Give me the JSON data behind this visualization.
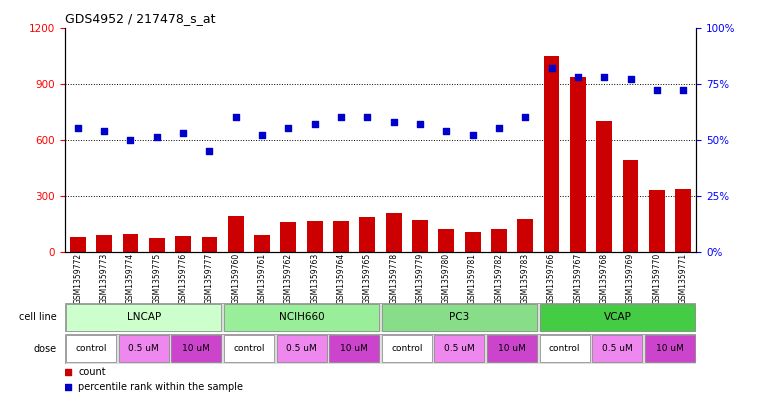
{
  "title": "GDS4952 / 217478_s_at",
  "samples": [
    "GSM1359772",
    "GSM1359773",
    "GSM1359774",
    "GSM1359775",
    "GSM1359776",
    "GSM1359777",
    "GSM1359760",
    "GSM1359761",
    "GSM1359762",
    "GSM1359763",
    "GSM1359764",
    "GSM1359765",
    "GSM1359778",
    "GSM1359779",
    "GSM1359780",
    "GSM1359781",
    "GSM1359782",
    "GSM1359783",
    "GSM1359766",
    "GSM1359767",
    "GSM1359768",
    "GSM1359769",
    "GSM1359770",
    "GSM1359771"
  ],
  "counts": [
    80,
    90,
    95,
    75,
    85,
    80,
    190,
    90,
    160,
    165,
    165,
    185,
    205,
    170,
    120,
    105,
    120,
    175,
    1050,
    935,
    700,
    490,
    330,
    335
  ],
  "percentiles": [
    55,
    54,
    50,
    51,
    53,
    45,
    60,
    52,
    55,
    57,
    60,
    60,
    58,
    57,
    54,
    52,
    55,
    60,
    82,
    78,
    78,
    77,
    72,
    72
  ],
  "cell_line_order": [
    "LNCAP",
    "NCIH660",
    "PC3",
    "VCAP"
  ],
  "cell_line_ranges": {
    "LNCAP": [
      0,
      6
    ],
    "NCIH660": [
      6,
      12
    ],
    "PC3": [
      12,
      18
    ],
    "VCAP": [
      18,
      24
    ]
  },
  "dose_groups": [
    {
      "label": "control",
      "start": 0,
      "end": 2
    },
    {
      "label": "0.5 uM",
      "start": 2,
      "end": 4
    },
    {
      "label": "10 uM",
      "start": 4,
      "end": 6
    },
    {
      "label": "control",
      "start": 6,
      "end": 8
    },
    {
      "label": "0.5 uM",
      "start": 8,
      "end": 10
    },
    {
      "label": "10 uM",
      "start": 10,
      "end": 12
    },
    {
      "label": "control",
      "start": 12,
      "end": 14
    },
    {
      "label": "0.5 uM",
      "start": 14,
      "end": 16
    },
    {
      "label": "10 uM",
      "start": 16,
      "end": 18
    },
    {
      "label": "control",
      "start": 18,
      "end": 20
    },
    {
      "label": "0.5 uM",
      "start": 20,
      "end": 22
    },
    {
      "label": "10 uM",
      "start": 22,
      "end": 24
    }
  ],
  "bar_color": "#CC0000",
  "dot_color": "#0000CC",
  "left_ylim": [
    0,
    1200
  ],
  "right_ylim": [
    0,
    100
  ],
  "left_yticks": [
    0,
    300,
    600,
    900,
    1200
  ],
  "right_yticks": [
    0,
    25,
    50,
    75,
    100
  ],
  "right_yticklabels": [
    "0%",
    "25%",
    "50%",
    "75%",
    "100%"
  ],
  "cell_line_colors": {
    "LNCAP": "#ccffcc",
    "NCIH660": "#99ee99",
    "PC3": "#88dd88",
    "VCAP": "#44cc44"
  },
  "dose_colors": {
    "control": "#ffffff",
    "0.5 uM": "#ee88ee",
    "10 uM": "#cc44cc"
  },
  "bg_color": "#ffffff",
  "label_row_bg": "#dddddd"
}
